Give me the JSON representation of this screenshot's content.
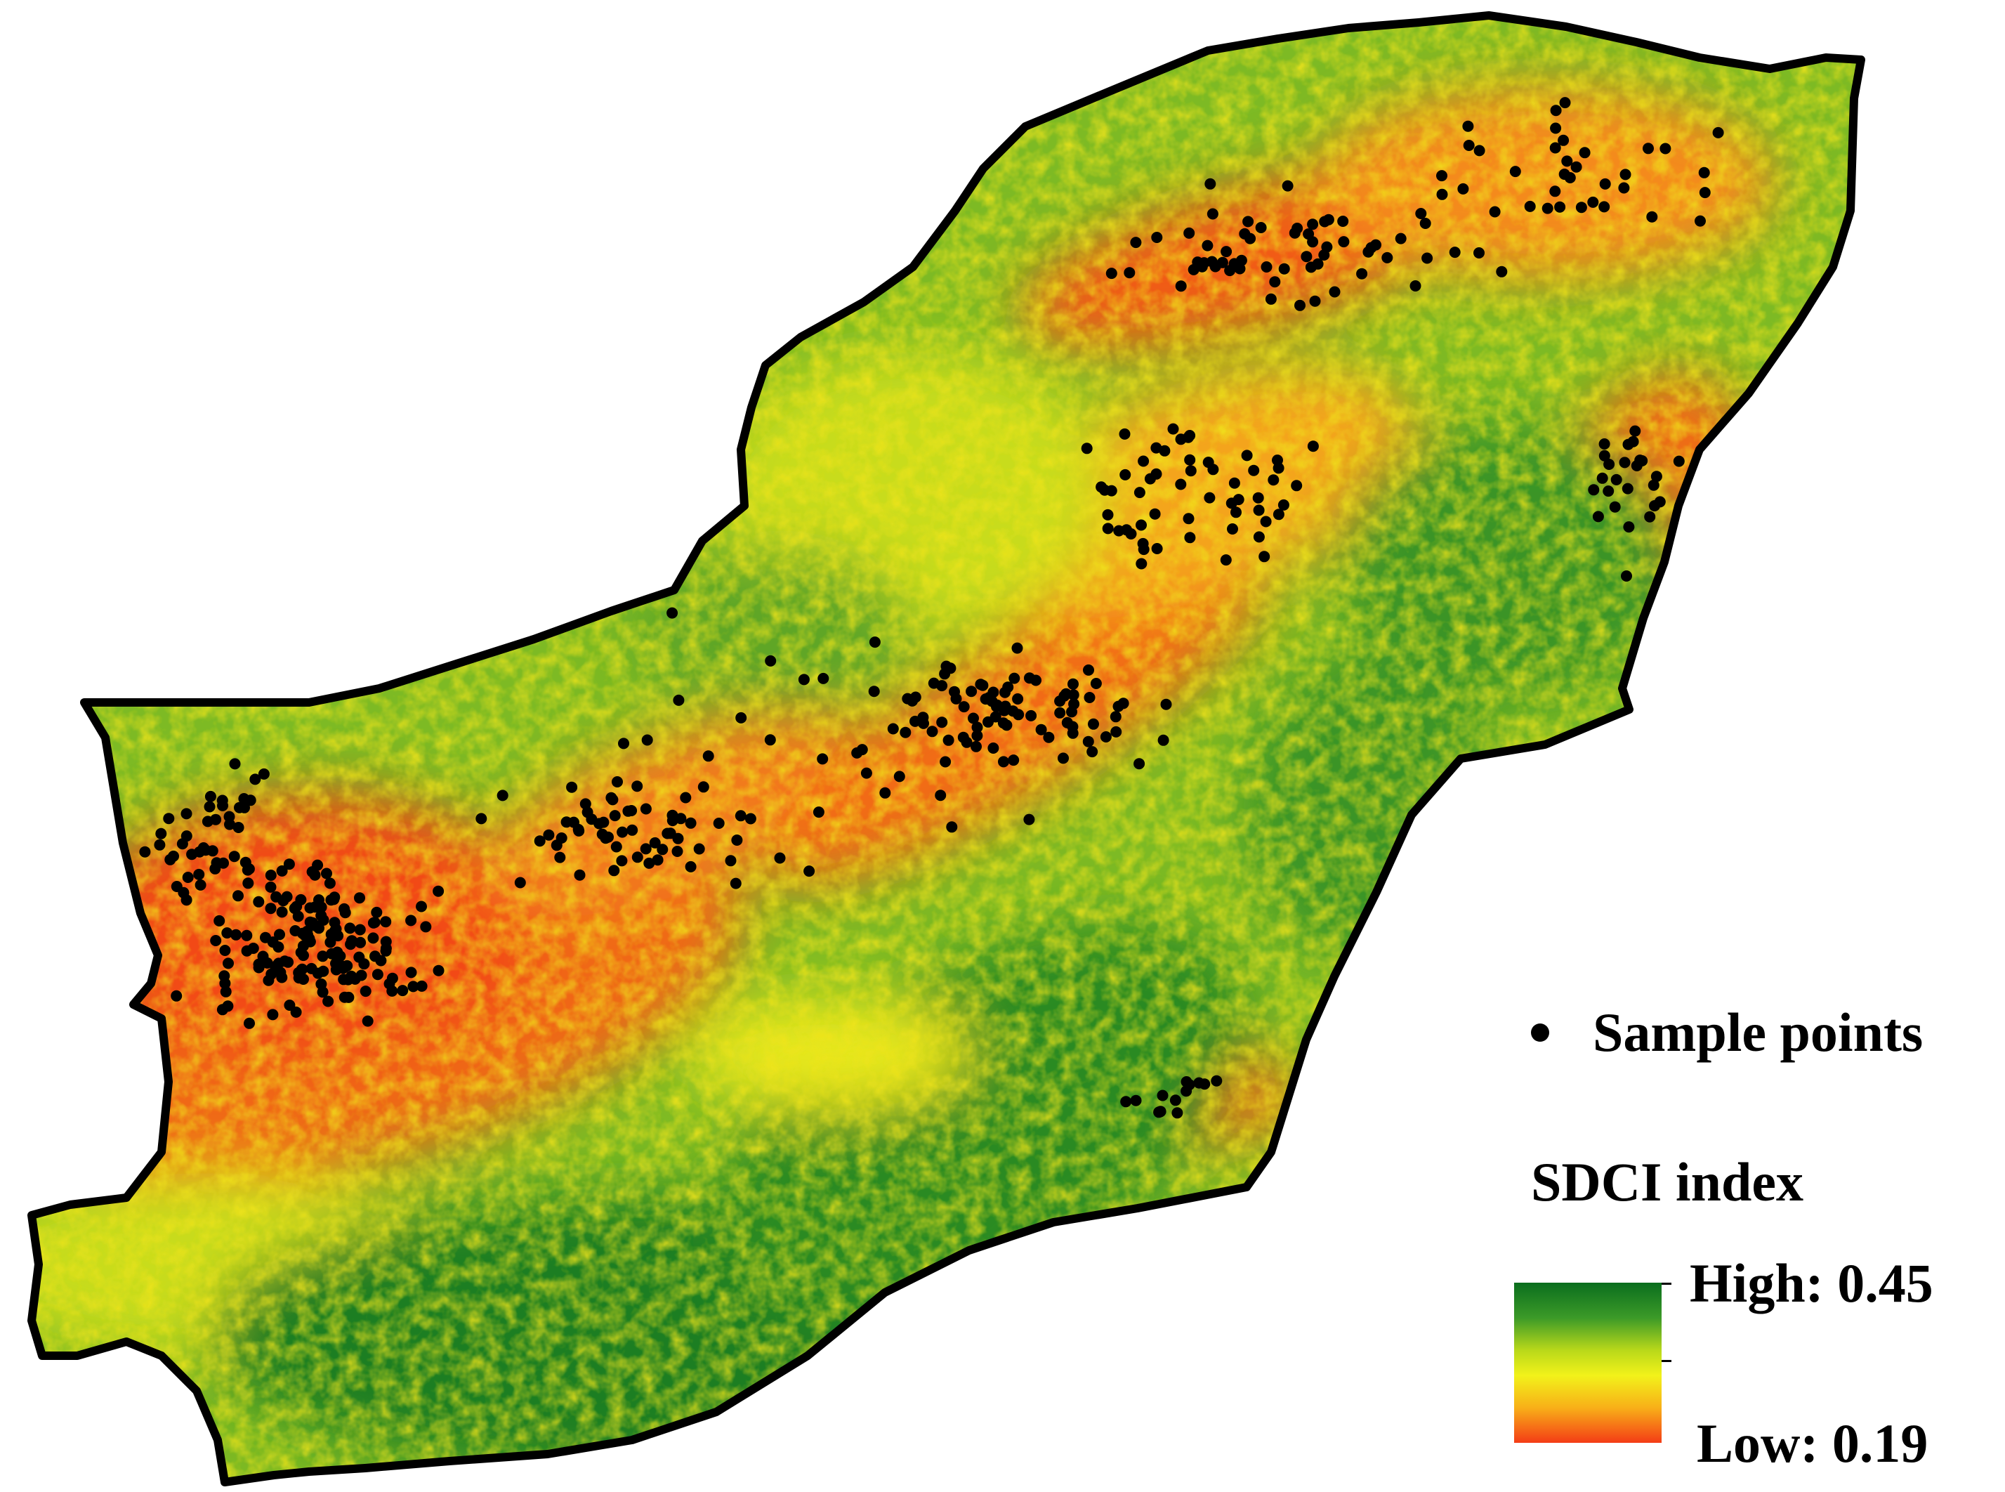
{
  "map": {
    "colors": {
      "high": "#0a6e1e",
      "mid": "#f2f21a",
      "low": "#f43c16",
      "boundary": "#000000",
      "points": "#000000"
    }
  },
  "legend": {
    "points_label": "Sample points",
    "title": "SDCI index",
    "high_label": "High: 0.45",
    "low_label": "Low: 0.19"
  }
}
